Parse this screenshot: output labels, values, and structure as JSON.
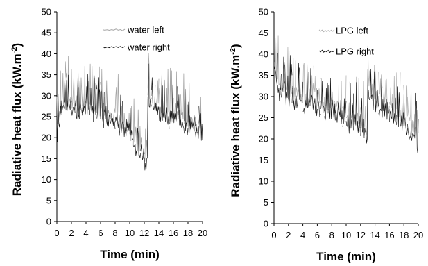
{
  "chart_data": [
    {
      "type": "line",
      "title": "",
      "xlabel": "Time (min)",
      "ylabel": "Radiative heat flux (kW.m⁻²)",
      "ylabel_parts": [
        "Radiative heat flux (kW.m",
        "-2",
        ")"
      ],
      "xlim": [
        0,
        20
      ],
      "ylim": [
        0,
        50
      ],
      "xticks": [
        "0",
        "2",
        "4",
        "6",
        "8",
        "10",
        "12",
        "14",
        "16",
        "18",
        "20"
      ],
      "yticks": [
        "0",
        "5",
        "10",
        "15",
        "20",
        "25",
        "30",
        "35",
        "40",
        "45",
        "50"
      ],
      "grid": false,
      "legend": "top-right",
      "series": [
        {
          "name": "water left",
          "color": "#a6a6a6",
          "x": [
            0,
            0.5,
            1,
            1.5,
            2,
            2.5,
            3,
            3.5,
            4,
            4.5,
            5,
            5.5,
            6,
            6.5,
            7,
            7.5,
            8,
            8.5,
            9,
            9.5,
            10,
            10.5,
            11,
            11.5,
            12,
            12.5,
            13,
            13.5,
            14,
            14.5,
            15,
            15.5,
            16,
            16.5,
            17,
            17.5,
            18,
            18.5,
            19,
            19.5,
            20
          ],
          "values": [
            20,
            27,
            29,
            28,
            28,
            27,
            27,
            27,
            29,
            27,
            27,
            27,
            27,
            26,
            26,
            25,
            24,
            24,
            23,
            22,
            21,
            19,
            18,
            17,
            15,
            30,
            29,
            28,
            27,
            26,
            25,
            25,
            25,
            25,
            24,
            24,
            23,
            23,
            23,
            22,
            22
          ]
        },
        {
          "name": "water right",
          "color": "#1a1a1a",
          "x": [
            0,
            0.5,
            1,
            1.5,
            2,
            2.5,
            3,
            3.5,
            4,
            4.5,
            5,
            5.5,
            6,
            6.5,
            7,
            7.5,
            8,
            8.5,
            9,
            9.5,
            10,
            10.5,
            11,
            11.5,
            12,
            12.5,
            13,
            13.5,
            14,
            14.5,
            15,
            15.5,
            16,
            16.5,
            17,
            17.5,
            18,
            18.5,
            19,
            19.5,
            20
          ],
          "values": [
            18,
            26,
            27,
            27,
            27,
            26,
            26,
            26,
            27,
            26,
            25,
            25,
            25,
            24,
            24,
            24,
            23,
            22,
            22,
            21,
            20,
            18,
            16,
            15,
            14,
            29,
            27,
            27,
            26,
            25,
            24,
            23,
            24,
            24,
            23,
            22,
            22,
            22,
            21,
            21,
            20
          ]
        }
      ]
    },
    {
      "type": "line",
      "title": "",
      "xlabel": "Time (min)",
      "ylabel": "Radiative heat flux (kW.m⁻²)",
      "ylabel_parts": [
        "Radiative heat flux (kW.m",
        "-2",
        ")"
      ],
      "xlim": [
        0,
        20
      ],
      "ylim": [
        0,
        50
      ],
      "xticks": [
        "0",
        "2",
        "4",
        "6",
        "8",
        "10",
        "12",
        "14",
        "16",
        "18",
        "20"
      ],
      "yticks": [
        "0",
        "5",
        "10",
        "15",
        "20",
        "25",
        "30",
        "35",
        "40",
        "45",
        "50"
      ],
      "grid": false,
      "legend": "top-right",
      "series": [
        {
          "name": "LPG left",
          "color": "#b3b3b3",
          "x": [
            0,
            0.5,
            1,
            1.5,
            2,
            2.5,
            3,
            3.5,
            4,
            4.5,
            5,
            5.5,
            6,
            6.5,
            7,
            7.5,
            8,
            8.5,
            9,
            9.5,
            10,
            10.5,
            11,
            11.5,
            12,
            12.5,
            13,
            13.5,
            14,
            14.5,
            15,
            15.5,
            16,
            16.5,
            17,
            17.5,
            18,
            18.5,
            19,
            19.5,
            20
          ],
          "values": [
            38,
            33,
            32,
            31,
            31,
            30,
            30,
            30,
            29,
            29,
            30,
            30,
            29,
            28,
            28,
            28,
            28,
            27,
            27,
            26,
            26,
            25,
            25,
            24,
            23,
            22,
            33,
            31,
            30,
            29,
            28,
            28,
            27,
            27,
            26,
            26,
            25,
            24,
            23,
            22,
            20
          ]
        },
        {
          "name": "LPG right",
          "color": "#1a1a1a",
          "x": [
            0,
            0.5,
            1,
            1.5,
            2,
            2.5,
            3,
            3.5,
            4,
            4.5,
            5,
            5.5,
            6,
            6.5,
            7,
            7.5,
            8,
            8.5,
            9,
            9.5,
            10,
            10.5,
            11,
            11.5,
            12,
            12.5,
            13,
            13.5,
            14,
            14.5,
            15,
            15.5,
            16,
            16.5,
            17,
            17.5,
            18,
            18.5,
            19,
            19.5,
            20
          ],
          "values": [
            36,
            31,
            30,
            29,
            29,
            28,
            28,
            28,
            27,
            27,
            28,
            28,
            27,
            26,
            26,
            26,
            26,
            25,
            25,
            24,
            24,
            23,
            23,
            22,
            21,
            20,
            31,
            29,
            28,
            27,
            26,
            26,
            25,
            25,
            24,
            24,
            23,
            22,
            21,
            20,
            18
          ]
        }
      ]
    }
  ]
}
